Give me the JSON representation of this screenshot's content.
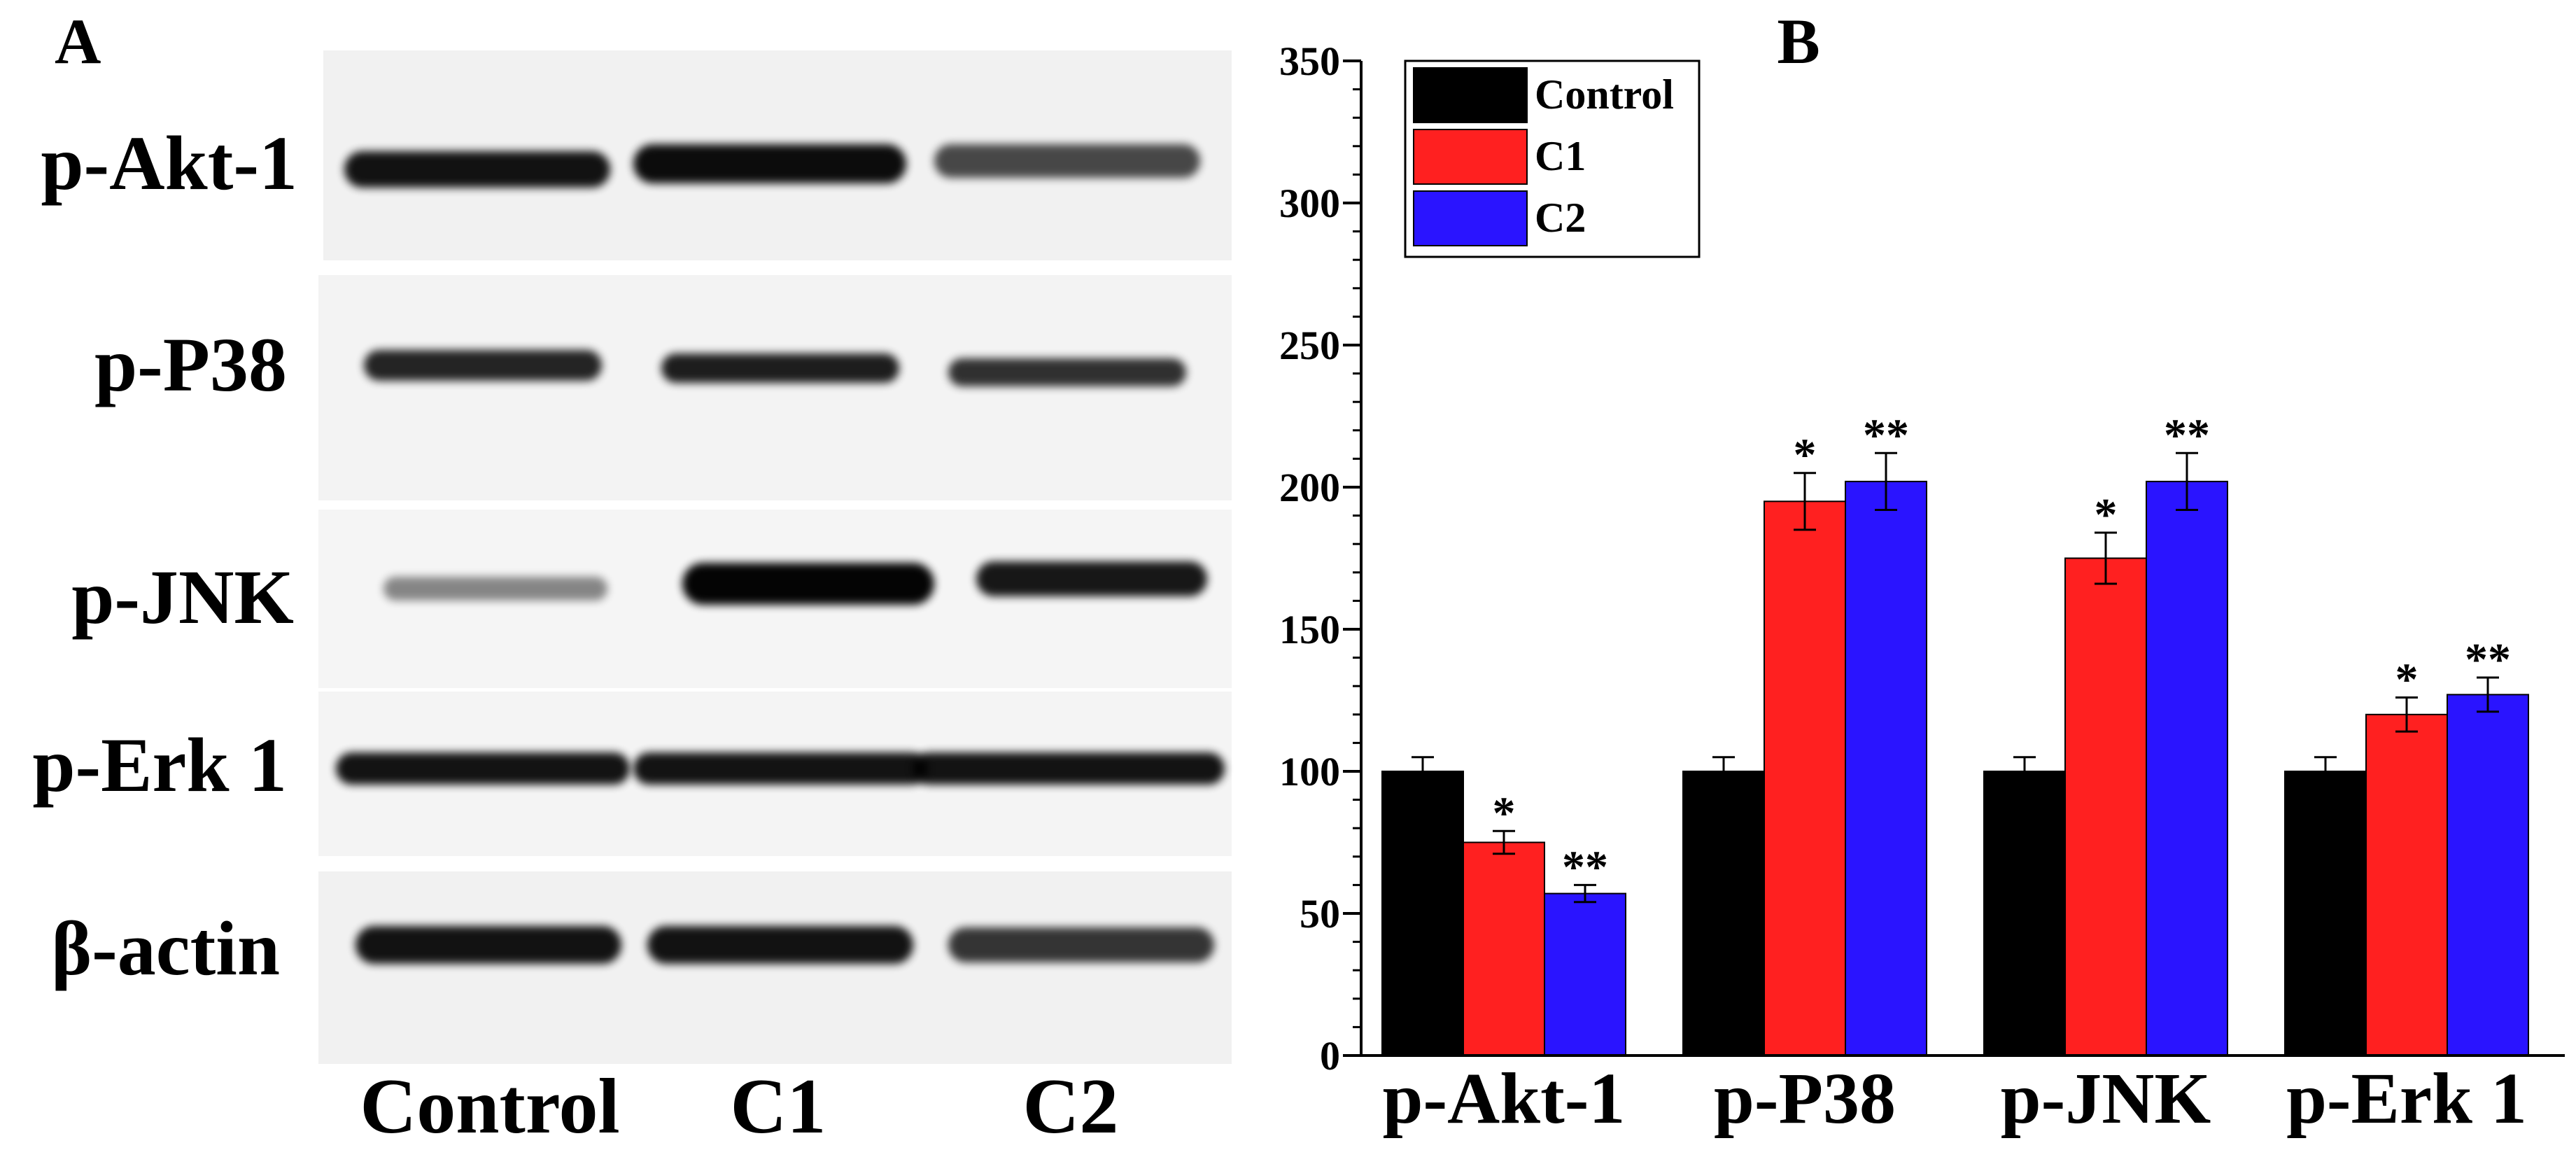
{
  "panel_a": {
    "label": "A",
    "rows": [
      {
        "label": "p-Akt-1",
        "intensity": [
          0.92,
          0.95,
          0.7
        ]
      },
      {
        "label": "p-P38",
        "intensity": [
          0.85,
          0.88,
          0.8
        ]
      },
      {
        "label": "p-JNK",
        "intensity": [
          0.45,
          0.98,
          0.9
        ]
      },
      {
        "label": "p-Erk 1",
        "intensity": [
          0.92,
          0.92,
          0.92
        ]
      },
      {
        "label": "β-actin",
        "intensity": [
          0.92,
          0.92,
          0.78
        ]
      }
    ],
    "lanes": [
      "Control",
      "C1",
      "C2"
    ]
  },
  "panel_b": {
    "label": "B"
  },
  "colors": {
    "control": "#000000",
    "c1": "#ff2020",
    "c2": "#2a14ff"
  },
  "chart_data": {
    "type": "bar",
    "title": "B",
    "xlabel": "",
    "ylabel": "",
    "categories": [
      "p-Akt-1",
      "p-P38",
      "p-JNK",
      "p-Erk 1"
    ],
    "series": [
      {
        "name": "Control",
        "color": "#000000",
        "values": [
          100,
          100,
          100,
          100
        ],
        "errors": [
          5,
          5,
          5,
          5
        ],
        "significance": [
          "",
          "",
          "",
          ""
        ]
      },
      {
        "name": "C1",
        "color": "#ff2020",
        "values": [
          75,
          195,
          175,
          120
        ],
        "errors": [
          4,
          10,
          9,
          6
        ],
        "significance": [
          "*",
          "*",
          "*",
          "*"
        ]
      },
      {
        "name": "C2",
        "color": "#2a14ff",
        "values": [
          57,
          202,
          202,
          127
        ],
        "errors": [
          3,
          10,
          10,
          6
        ],
        "significance": [
          "**",
          "**",
          "**",
          "**"
        ]
      }
    ],
    "ylim": [
      0,
      350
    ],
    "yticks": [
      0,
      50,
      100,
      150,
      200,
      250,
      300,
      350
    ],
    "yminor_step": 10,
    "legend_position": "top-left",
    "grid": false
  }
}
